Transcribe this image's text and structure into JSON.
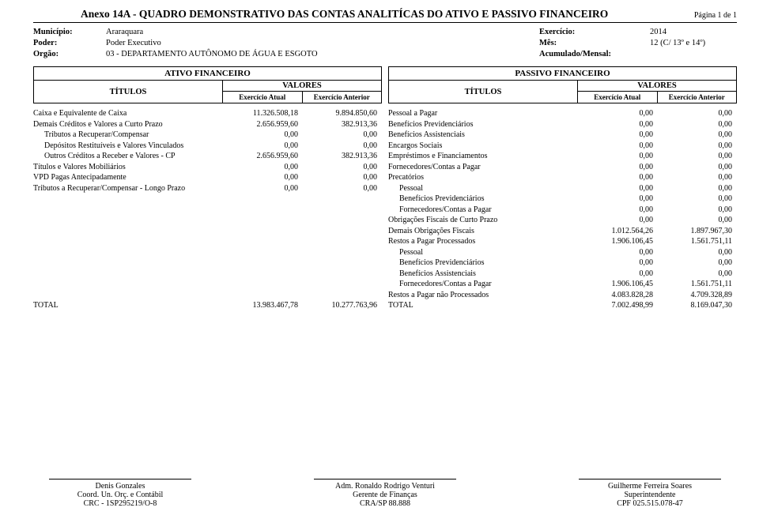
{
  "header": {
    "title": "Anexo 14A - QUADRO DEMONSTRATIVO DAS CONTAS ANALITÍCAS DO ATIVO E PASSIVO FINANCEIRO",
    "page_label": "Página 1 de 1"
  },
  "meta": {
    "municipio_label": "Município:",
    "municipio_value": "Araraquara",
    "poder_label": "Poder:",
    "poder_value": "Poder Executivo",
    "orgao_label": "Orgão:",
    "orgao_value": "03 - DEPARTAMENTO AUTÔNOMO DE ÁGUA E ESGOTO",
    "exercicio_label": "Exercício:",
    "exercicio_value": "2014",
    "mes_label": "Mês:",
    "mes_value": "12 (C/ 13º e 14º)",
    "acumulado_label": "Acumulado/Mensal:",
    "acumulado_value": ""
  },
  "columns": {
    "ativo_head": "ATIVO FINANCEIRO",
    "passivo_head": "PASSIVO FINANCEIRO",
    "titulos": "TÍTULOS",
    "valores": "VALORES",
    "exerc_atual": "Exercício Atual",
    "exerc_anterior": "Exercício Anterior"
  },
  "ativo_rows": [
    {
      "desc": "Caixa e Equivalente de Caixa",
      "indent": false,
      "atual": "11.326.508,18",
      "anterior": "9.894.850,60"
    },
    {
      "desc": "Demais Créditos e Valores a Curto Prazo",
      "indent": false,
      "atual": "2.656.959,60",
      "anterior": "382.913,36"
    },
    {
      "desc": "Tributos a Recuperar/Compensar",
      "indent": true,
      "atual": "0,00",
      "anterior": "0,00"
    },
    {
      "desc": "Depósitos Restituíveis e Valores Vinculados",
      "indent": true,
      "atual": "0,00",
      "anterior": "0,00"
    },
    {
      "desc": "Outros Créditos a Receber e Valores - CP",
      "indent": true,
      "atual": "2.656.959,60",
      "anterior": "382.913,36"
    },
    {
      "desc": "Títulos e Valores Mobiliários",
      "indent": false,
      "atual": "0,00",
      "anterior": "0,00"
    },
    {
      "desc": "VPD Pagas Antecipadamente",
      "indent": false,
      "atual": "0,00",
      "anterior": "0,00"
    },
    {
      "desc": "Tributos a Recuperar/Compensar - Longo Prazo",
      "indent": false,
      "atual": "0,00",
      "anterior": "0,00"
    }
  ],
  "ativo_total": {
    "desc": "TOTAL",
    "atual": "13.983.467,78",
    "anterior": "10.277.763,96"
  },
  "passivo_rows": [
    {
      "desc": "Pessoal a Pagar",
      "indent": false,
      "atual": "0,00",
      "anterior": "0,00"
    },
    {
      "desc": "Benefícios Previdenciários",
      "indent": false,
      "atual": "0,00",
      "anterior": "0,00"
    },
    {
      "desc": "Benefícios Assistenciais",
      "indent": false,
      "atual": "0,00",
      "anterior": "0,00"
    },
    {
      "desc": "Encargos Sociais",
      "indent": false,
      "atual": "0,00",
      "anterior": "0,00"
    },
    {
      "desc": "Empréstimos e Financiamentos",
      "indent": false,
      "atual": "0,00",
      "anterior": "0,00"
    },
    {
      "desc": "Fornecedores/Contas a Pagar",
      "indent": false,
      "atual": "0,00",
      "anterior": "0,00"
    },
    {
      "desc": "Precatórios",
      "indent": false,
      "atual": "0,00",
      "anterior": "0,00"
    },
    {
      "desc": "Pessoal",
      "indent": true,
      "atual": "0,00",
      "anterior": "0,00"
    },
    {
      "desc": "Benefícios Previdenciários",
      "indent": true,
      "atual": "0,00",
      "anterior": "0,00"
    },
    {
      "desc": "Fornecedores/Contas a Pagar",
      "indent": true,
      "atual": "0,00",
      "anterior": "0,00"
    },
    {
      "desc": "Obrigações Fiscais de Curto Prazo",
      "indent": false,
      "atual": "0,00",
      "anterior": "0,00"
    },
    {
      "desc": "Demais Obrigações Fiscais",
      "indent": false,
      "atual": "1.012.564,26",
      "anterior": "1.897.967,30"
    },
    {
      "desc": "Restos a Pagar Processados",
      "indent": false,
      "atual": "1.906.106,45",
      "anterior": "1.561.751,11"
    },
    {
      "desc": "Pessoal",
      "indent": true,
      "atual": "0,00",
      "anterior": "0,00"
    },
    {
      "desc": "Benefícios Previdenciários",
      "indent": true,
      "atual": "0,00",
      "anterior": "0,00"
    },
    {
      "desc": "Benefícios Assistenciais",
      "indent": true,
      "atual": "0,00",
      "anterior": "0,00"
    },
    {
      "desc": "Fornecedores/Contas a Pagar",
      "indent": true,
      "atual": "1.906.106,45",
      "anterior": "1.561.751,11"
    },
    {
      "desc": "Restos a Pagar não Processados",
      "indent": false,
      "atual": "4.083.828,28",
      "anterior": "4.709.328,89"
    }
  ],
  "passivo_total": {
    "desc": "TOTAL",
    "atual": "7.002.498,99",
    "anterior": "8.169.047,30"
  },
  "signatures": [
    {
      "name": "Denis Gonzales",
      "role": "Coord. Un. Orç. e Contábil",
      "id": "CRC - 1SP295219/O-8"
    },
    {
      "name": "Adm. Ronaldo Rodrigo Venturi",
      "role": "Gerente de Finanças",
      "id": "CRA/SP 88.888"
    },
    {
      "name": "Guilherme Ferreira Soares",
      "role": "Superintendente",
      "id": "CPF 025.515.078-47"
    }
  ]
}
